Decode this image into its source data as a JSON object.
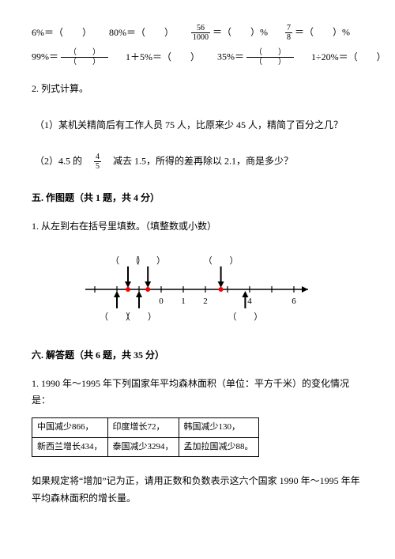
{
  "eq_row1": {
    "a": "6%＝（　　）",
    "b": "80%＝（　　）",
    "c_pre": "",
    "c_frac_num": "56",
    "c_frac_den": "1000",
    "c_post": "＝（　　）%",
    "d_frac_num": "7",
    "d_frac_den": "8",
    "d_post": "＝（　　）%"
  },
  "eq_row2": {
    "a_pre": "99%＝",
    "a_frac_up": "（　　）",
    "a_frac_dn": "（　　）",
    "b": "1＋5%＝（　　）",
    "c_pre": "35%＝",
    "c_frac_up": "（　　）",
    "c_frac_dn": "（　　）",
    "d": "1÷20%＝（　　）"
  },
  "q2": {
    "title": "2. 列式计算。",
    "p1": "（1）某机关精简后有工作人员 75 人，比原来少 45 人，精简了百分之几？",
    "p2_pre": "（2）4.5 的　",
    "p2_frac_num": "4",
    "p2_frac_den": "5",
    "p2_post": "　减去 1.5，所得的差再除以 2.1，商是多少？"
  },
  "sec5": {
    "heading": "五. 作图题（共 1 题，共 4 分）",
    "q1": "1. 从左到右在括号里填数。（填整数或小数）"
  },
  "numberline": {
    "ticks": [
      -3,
      -2,
      -1,
      0,
      1,
      2,
      3,
      4,
      5,
      6
    ],
    "labels_shown": [
      "0",
      "1",
      "2",
      "4",
      "6"
    ],
    "blank_label": "（　　）",
    "top_arrows_x": [
      -1.5,
      -0.6,
      2.7
    ],
    "bottom_arrows_x": [
      -2,
      -1,
      3.8
    ],
    "line_color": "#000000",
    "marker_color": "#ff0000",
    "bg": "#ffffff"
  },
  "sec6": {
    "heading": "六. 解答题（共 6 题，共 35 分）",
    "q1_intro": "1. 1990 年～1995 年下列国家年平均森林面积（单位：平方千米）的变化情况是：",
    "table": {
      "rows": [
        [
          "中国减少866，",
          "印度增长72，",
          "韩国减少130，"
        ],
        [
          "新西兰增长434，",
          "泰国减少3294，",
          "孟加拉国减少88。"
        ]
      ]
    },
    "q1_tail": "如果规定将“增加”记为正，请用正数和负数表示这六个国家 1990 年～1995 年年平均森林面积的增长量。"
  }
}
